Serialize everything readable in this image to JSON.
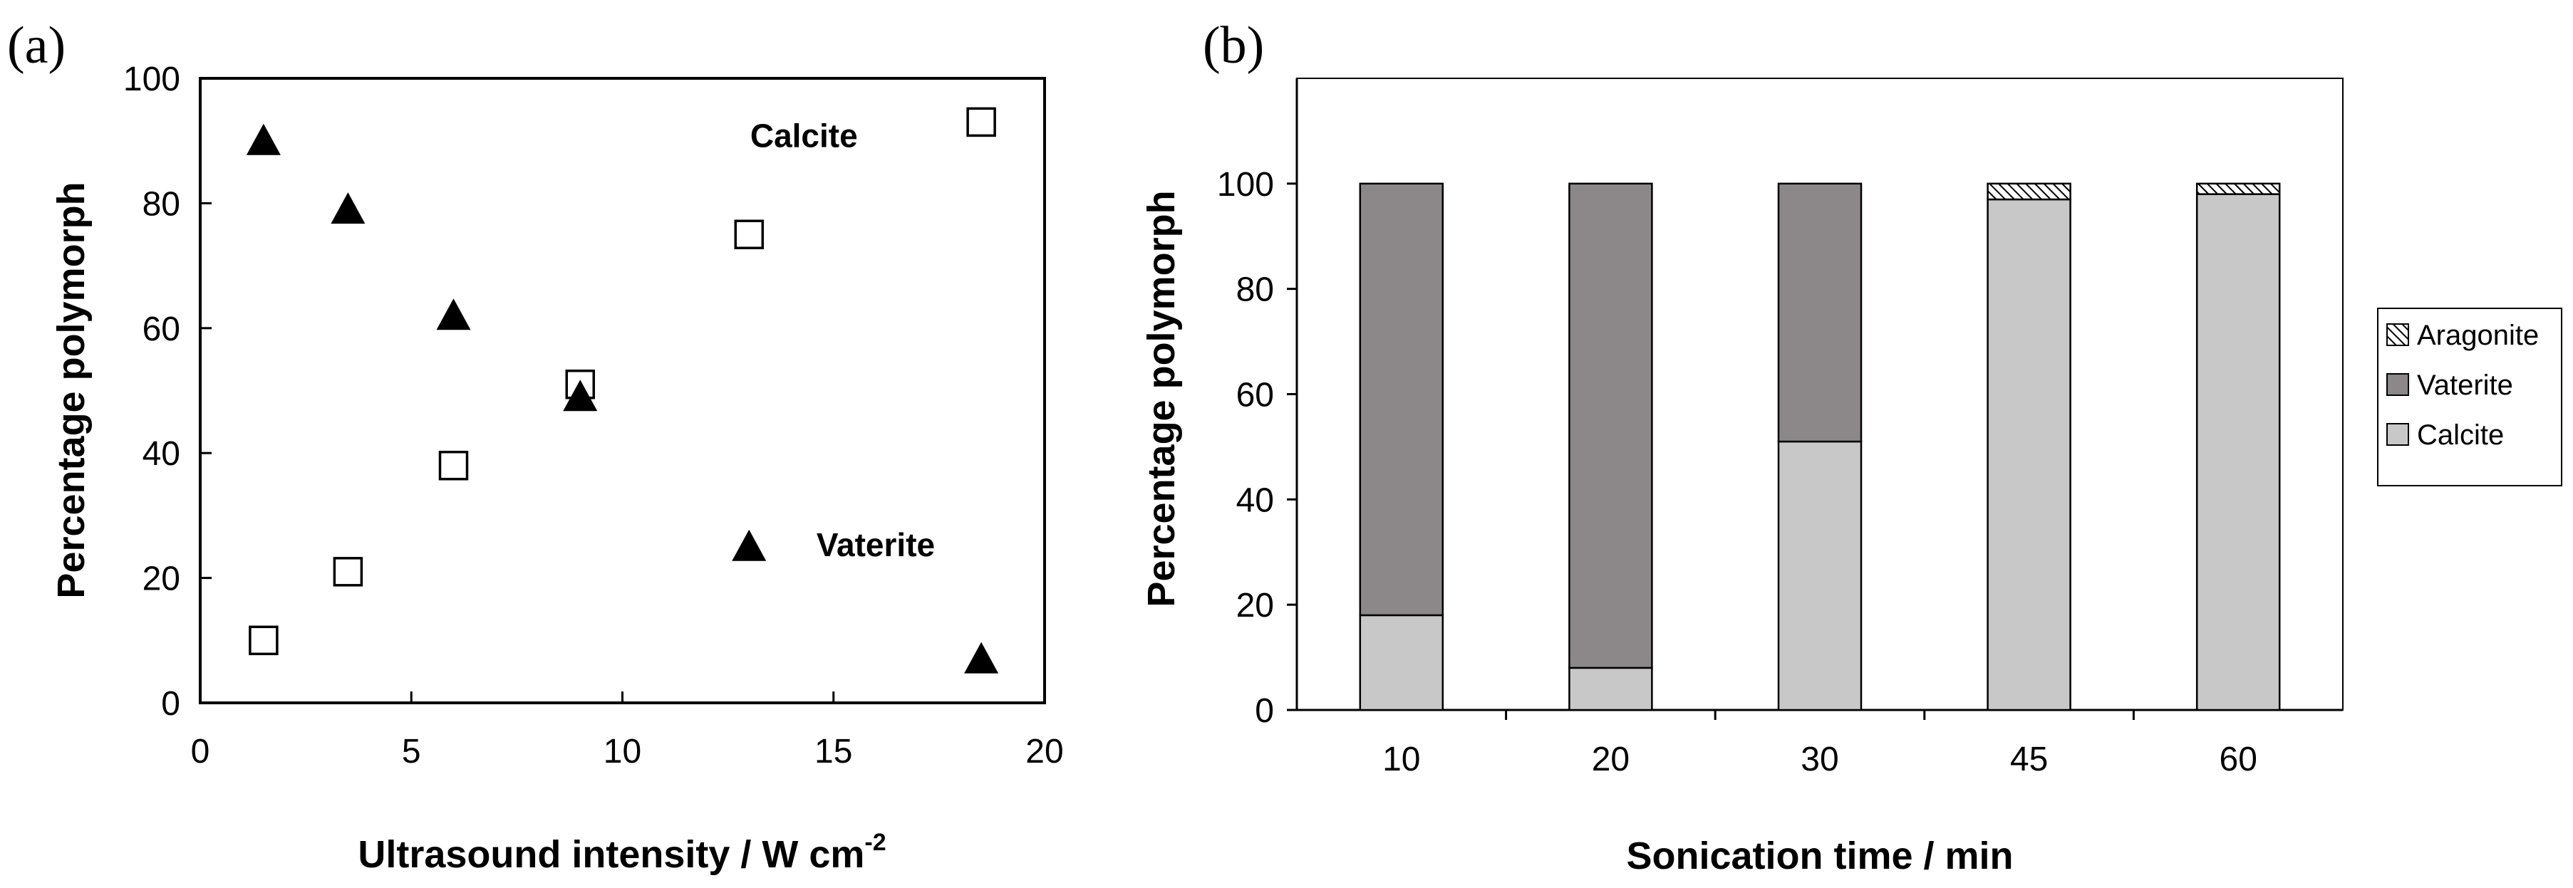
{
  "chart_data": [
    {
      "panel": "(a)",
      "type": "scatter",
      "xlabel": "Ultrasound intensity  /  W cm",
      "xlabel_sup": "-2",
      "ylabel": "Percentage polymorph",
      "xlim": [
        0,
        20
      ],
      "ylim": [
        0,
        100
      ],
      "xticks": [
        "0",
        "5",
        "10",
        "15",
        "20"
      ],
      "yticks": [
        "0",
        "20",
        "40",
        "60",
        "80",
        "100"
      ],
      "series": [
        {
          "name": "Calcite",
          "marker": "open-square",
          "x": [
            1.5,
            3.5,
            6,
            9,
            13,
            18.5
          ],
          "y": [
            10,
            21,
            38,
            51,
            75,
            93
          ]
        },
        {
          "name": "Vaterite",
          "marker": "filled-triangle",
          "x": [
            1.5,
            3.5,
            6,
            9,
            13,
            18.5
          ],
          "y": [
            90,
            79,
            62,
            49,
            25,
            7
          ]
        }
      ],
      "annotations": [
        {
          "text": "Calcite",
          "x": 14.3,
          "y": 89
        },
        {
          "text": "Vaterite",
          "x": 16.0,
          "y": 23.5
        }
      ]
    },
    {
      "panel": "(b)",
      "type": "bar",
      "stacked": true,
      "xlabel": "Sonication time  /  min",
      "ylabel": "Percentage polymorph",
      "ylim": [
        0,
        120
      ],
      "yticks": [
        "0",
        "20",
        "40",
        "60",
        "80",
        "100"
      ],
      "categories": [
        "10",
        "20",
        "30",
        "45",
        "60"
      ],
      "series": [
        {
          "name": "Calcite",
          "values": [
            18,
            8,
            51,
            97,
            98
          ]
        },
        {
          "name": "Vaterite",
          "values": [
            82,
            92,
            49,
            0,
            0
          ]
        },
        {
          "name": "Aragonite",
          "values": [
            0,
            0,
            0,
            3,
            2
          ]
        }
      ],
      "legend": [
        "Aragonite",
        "Vaterite",
        "Calcite"
      ],
      "legend_position": "right",
      "colors": {
        "Calcite": "#c8c8c8",
        "Vaterite": "#8c8889",
        "Aragonite": "#ffffff"
      }
    }
  ]
}
